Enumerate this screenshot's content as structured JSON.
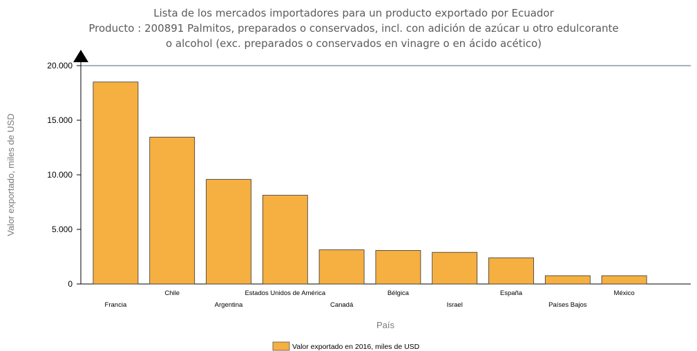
{
  "chart_data": {
    "type": "bar",
    "title_lines": [
      "Lista de los mercados importadores para un producto exportado por Ecuador",
      "Producto : 200891 Palmitos, preparados o conservados, incl. con adición de azúcar u otro edulcorante",
      "o alcohol (exc. preparados o conservados en vinagre o en ácido acético)"
    ],
    "xlabel": "País",
    "ylabel": "Valor exportado, miles de USD",
    "ylim": [
      0,
      20000
    ],
    "yticks": [
      0,
      5000,
      10000,
      15000,
      20000
    ],
    "ytick_labels": [
      "0",
      "5.000",
      "10.000",
      "15.000",
      "20.000"
    ],
    "categories": [
      "Francia",
      "Chile",
      "Argentina",
      "Estados Unidos de América",
      "Canadá",
      "Bélgica",
      "Israel",
      "España",
      "Países Bajos",
      "México"
    ],
    "series": [
      {
        "name": "Valor exportado en 2016, miles de USD",
        "color": "#f5b041",
        "values": [
          18500,
          13450,
          9580,
          8130,
          3130,
          3070,
          2900,
          2400,
          760,
          760
        ]
      }
    ],
    "legend_position": "bottom",
    "grid": false
  }
}
